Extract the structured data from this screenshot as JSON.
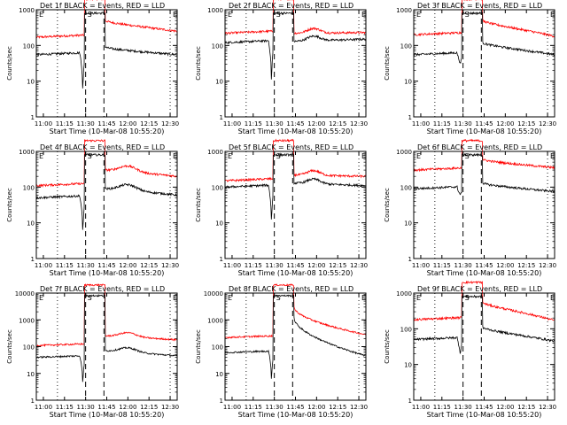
{
  "chart_data": [
    {
      "type": "line",
      "title": "Det 1f BLACK = Events, RED = LLD",
      "xlabel": "Start Time (10-Mar-08 10:55:20)",
      "ylabel": "Counts/sec",
      "ylog": true,
      "ylim": [
        1,
        1000
      ],
      "xtick_labels": [
        "11:00",
        "11:15",
        "11:30",
        "11:45",
        "12:00",
        "12:15",
        "12:30"
      ],
      "ytick_labels": [
        "1",
        "10",
        "100",
        "1000"
      ],
      "markers": {
        "E1": "E",
        "S": "S",
        "E2": "E"
      },
      "series": [
        {
          "color": "#ff0000",
          "shape": "A",
          "base": 170,
          "peak": 2000,
          "post": 500,
          "end": 250
        },
        {
          "color": "#000000",
          "shape": "A",
          "base": 55,
          "peak": 800,
          "post": 90,
          "end": 55,
          "dip": 4
        }
      ]
    },
    {
      "type": "line",
      "title": "Det 2f BLACK = Events, RED = LLD",
      "xlabel": "Start Time (10-Mar-08 10:55:20)",
      "ylabel": "Counts/sec",
      "ylog": true,
      "ylim": [
        1,
        1000
      ],
      "xtick_labels": [
        "11:00",
        "11:15",
        "11:30",
        "11:45",
        "12:00",
        "12:15",
        "12:30"
      ],
      "ytick_labels": [
        "1",
        "10",
        "100",
        "1000"
      ],
      "markers": {
        "E1": "E",
        "S": "S",
        "E2": "E"
      },
      "series": [
        {
          "color": "#ff0000",
          "shape": "B",
          "base": 220,
          "peak": 2000,
          "post": 220,
          "end": 230
        },
        {
          "color": "#000000",
          "shape": "B",
          "base": 120,
          "peak": 800,
          "post": 130,
          "end": 150,
          "dip": 6
        }
      ]
    },
    {
      "type": "line",
      "title": "Det 3f BLACK = Events, RED = LLD",
      "xlabel": "Start Time (10-Mar-08 10:55:20)",
      "ylabel": "Counts/sec",
      "ylog": true,
      "ylim": [
        1,
        1000
      ],
      "xtick_labels": [
        "11:00",
        "11:15",
        "11:30",
        "11:45",
        "12:00",
        "12:15",
        "12:30"
      ],
      "ytick_labels": [
        "1",
        "10",
        "100",
        "1000"
      ],
      "markers": {
        "E1": "E",
        "S": "S",
        "E2": "E"
      },
      "series": [
        {
          "color": "#ff0000",
          "shape": "A",
          "base": 200,
          "peak": 2000,
          "post": 500,
          "end": 180
        },
        {
          "color": "#000000",
          "shape": "A",
          "base": 55,
          "peak": 800,
          "post": 120,
          "end": 55,
          "dip": 30
        }
      ]
    },
    {
      "type": "line",
      "title": "Det 4f BLACK = Events, RED = LLD",
      "xlabel": "Start Time (10-Mar-08 10:55:20)",
      "ylabel": "Counts/sec",
      "ylog": true,
      "ylim": [
        1,
        1000
      ],
      "xtick_labels": [
        "11:00",
        "11:15",
        "11:30",
        "11:45",
        "12:00",
        "12:15",
        "12:30"
      ],
      "ytick_labels": [
        "1",
        "10",
        "100",
        "1000"
      ],
      "markers": {
        "E1": "E",
        "S": "S",
        "E2": "E"
      },
      "series": [
        {
          "color": "#ff0000",
          "shape": "C",
          "base": 110,
          "peak": 2000,
          "post": 300,
          "end": 200
        },
        {
          "color": "#000000",
          "shape": "C",
          "base": 50,
          "peak": 800,
          "post": 90,
          "end": 60,
          "dip": 4
        }
      ]
    },
    {
      "type": "line",
      "title": "Det 5f BLACK = Events, RED = LLD",
      "xlabel": "Start Time (10-Mar-08 10:55:20)",
      "ylabel": "Counts/sec",
      "ylog": true,
      "ylim": [
        1,
        1000
      ],
      "xtick_labels": [
        "11:00",
        "11:15",
        "11:30",
        "11:45",
        "12:00",
        "12:15",
        "12:30"
      ],
      "ytick_labels": [
        "1",
        "10",
        "100",
        "1000"
      ],
      "markers": {
        "E1": "E",
        "S": "S",
        "E2": "E"
      },
      "series": [
        {
          "color": "#ff0000",
          "shape": "B",
          "base": 150,
          "peak": 2000,
          "post": 220,
          "end": 200
        },
        {
          "color": "#000000",
          "shape": "B",
          "base": 100,
          "peak": 800,
          "post": 130,
          "end": 110,
          "dip": 8
        }
      ]
    },
    {
      "type": "line",
      "title": "Det 6f BLACK = Events, RED = LLD",
      "xlabel": "Start Time (10-Mar-08 10:55:20)",
      "ylabel": "Counts/sec",
      "ylog": true,
      "ylim": [
        1,
        1000
      ],
      "xtick_labels": [
        "11:00",
        "11:15",
        "11:30",
        "11:45",
        "12:00",
        "12:15",
        "12:30"
      ],
      "ytick_labels": [
        "1",
        "10",
        "100",
        "1000"
      ],
      "markers": {
        "E1": "E",
        "S": "S",
        "E2": "E"
      },
      "series": [
        {
          "color": "#ff0000",
          "shape": "A",
          "base": 300,
          "peak": 2000,
          "post": 600,
          "end": 350
        },
        {
          "color": "#000000",
          "shape": "A",
          "base": 90,
          "peak": 800,
          "post": 130,
          "end": 75,
          "dip": 60
        }
      ]
    },
    {
      "type": "line",
      "title": "Det 7f BLACK = Events, RED = LLD",
      "xlabel": "Start Time (10-Mar-08 10:55:20)",
      "ylabel": "Counts/sec",
      "ylog": true,
      "ylim": [
        1,
        10000
      ],
      "xtick_labels": [
        "11:00",
        "11:15",
        "11:30",
        "11:45",
        "12:00",
        "12:15",
        "12:30"
      ],
      "ytick_labels": [
        "1",
        "10",
        "100",
        "1000",
        "10000"
      ],
      "markers": {
        "E1": "E",
        "S": "S",
        "E2": "E"
      },
      "series": [
        {
          "color": "#ff0000",
          "shape": "C",
          "base": 110,
          "peak": 20000,
          "post": 250,
          "end": 180
        },
        {
          "color": "#000000",
          "shape": "C",
          "base": 40,
          "peak": 8000,
          "post": 70,
          "end": 45,
          "dip": 3
        }
      ]
    },
    {
      "type": "line",
      "title": "Det 8f BLACK = Events, RED = LLD",
      "xlabel": "Start Time (10-Mar-08 10:55:20)",
      "ylabel": "Counts/sec",
      "ylog": true,
      "ylim": [
        1,
        10000
      ],
      "xtick_labels": [
        "11:00",
        "11:15",
        "11:30",
        "11:45",
        "12:00",
        "12:15",
        "12:30"
      ],
      "ytick_labels": [
        "1",
        "10",
        "100",
        "1000",
        "10000"
      ],
      "markers": {
        "E1": "E",
        "S": "S",
        "E2": "E"
      },
      "series": [
        {
          "color": "#ff0000",
          "shape": "D",
          "base": 220,
          "peak": 20000,
          "post": 3000,
          "end": 280
        },
        {
          "color": "#000000",
          "shape": "D",
          "base": 60,
          "peak": 8000,
          "post": 1200,
          "end": 45,
          "dip": 4
        }
      ]
    },
    {
      "type": "line",
      "title": "Det 9f BLACK = Events, RED = LLD",
      "xlabel": "Start Time (10-Mar-08 10:55:20)",
      "ylabel": "Counts/sec",
      "ylog": true,
      "ylim": [
        1,
        1000
      ],
      "xtick_labels": [
        "11:00",
        "11:15",
        "11:30",
        "11:45",
        "12:00",
        "12:15",
        "12:30"
      ],
      "ytick_labels": [
        "1",
        "10",
        "100",
        "1000"
      ],
      "markers": {
        "E1": "E",
        "S": "S",
        "E2": "E"
      },
      "series": [
        {
          "color": "#ff0000",
          "shape": "A",
          "base": 180,
          "peak": 2000,
          "post": 550,
          "end": 170
        },
        {
          "color": "#000000",
          "shape": "A",
          "base": 50,
          "peak": 800,
          "post": 110,
          "end": 45,
          "dip": 20
        }
      ]
    }
  ]
}
